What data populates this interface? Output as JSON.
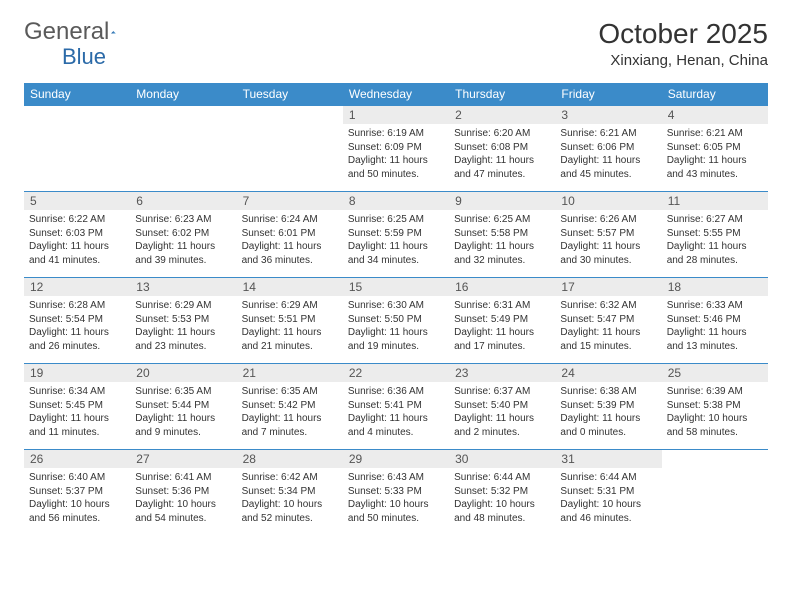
{
  "brand": {
    "name1": "General",
    "name2": "Blue"
  },
  "title": "October 2025",
  "location": "Xinxiang, Henan, China",
  "colors": {
    "header_bg": "#3b8bc9",
    "daynum_bg": "#ececec",
    "border": "#3b8bc9"
  },
  "dayNames": [
    "Sunday",
    "Monday",
    "Tuesday",
    "Wednesday",
    "Thursday",
    "Friday",
    "Saturday"
  ],
  "weeks": [
    [
      null,
      null,
      null,
      {
        "n": "1",
        "sr": "6:19 AM",
        "ss": "6:09 PM",
        "dl": "11 hours and 50 minutes."
      },
      {
        "n": "2",
        "sr": "6:20 AM",
        "ss": "6:08 PM",
        "dl": "11 hours and 47 minutes."
      },
      {
        "n": "3",
        "sr": "6:21 AM",
        "ss": "6:06 PM",
        "dl": "11 hours and 45 minutes."
      },
      {
        "n": "4",
        "sr": "6:21 AM",
        "ss": "6:05 PM",
        "dl": "11 hours and 43 minutes."
      }
    ],
    [
      {
        "n": "5",
        "sr": "6:22 AM",
        "ss": "6:03 PM",
        "dl": "11 hours and 41 minutes."
      },
      {
        "n": "6",
        "sr": "6:23 AM",
        "ss": "6:02 PM",
        "dl": "11 hours and 39 minutes."
      },
      {
        "n": "7",
        "sr": "6:24 AM",
        "ss": "6:01 PM",
        "dl": "11 hours and 36 minutes."
      },
      {
        "n": "8",
        "sr": "6:25 AM",
        "ss": "5:59 PM",
        "dl": "11 hours and 34 minutes."
      },
      {
        "n": "9",
        "sr": "6:25 AM",
        "ss": "5:58 PM",
        "dl": "11 hours and 32 minutes."
      },
      {
        "n": "10",
        "sr": "6:26 AM",
        "ss": "5:57 PM",
        "dl": "11 hours and 30 minutes."
      },
      {
        "n": "11",
        "sr": "6:27 AM",
        "ss": "5:55 PM",
        "dl": "11 hours and 28 minutes."
      }
    ],
    [
      {
        "n": "12",
        "sr": "6:28 AM",
        "ss": "5:54 PM",
        "dl": "11 hours and 26 minutes."
      },
      {
        "n": "13",
        "sr": "6:29 AM",
        "ss": "5:53 PM",
        "dl": "11 hours and 23 minutes."
      },
      {
        "n": "14",
        "sr": "6:29 AM",
        "ss": "5:51 PM",
        "dl": "11 hours and 21 minutes."
      },
      {
        "n": "15",
        "sr": "6:30 AM",
        "ss": "5:50 PM",
        "dl": "11 hours and 19 minutes."
      },
      {
        "n": "16",
        "sr": "6:31 AM",
        "ss": "5:49 PM",
        "dl": "11 hours and 17 minutes."
      },
      {
        "n": "17",
        "sr": "6:32 AM",
        "ss": "5:47 PM",
        "dl": "11 hours and 15 minutes."
      },
      {
        "n": "18",
        "sr": "6:33 AM",
        "ss": "5:46 PM",
        "dl": "11 hours and 13 minutes."
      }
    ],
    [
      {
        "n": "19",
        "sr": "6:34 AM",
        "ss": "5:45 PM",
        "dl": "11 hours and 11 minutes."
      },
      {
        "n": "20",
        "sr": "6:35 AM",
        "ss": "5:44 PM",
        "dl": "11 hours and 9 minutes."
      },
      {
        "n": "21",
        "sr": "6:35 AM",
        "ss": "5:42 PM",
        "dl": "11 hours and 7 minutes."
      },
      {
        "n": "22",
        "sr": "6:36 AM",
        "ss": "5:41 PM",
        "dl": "11 hours and 4 minutes."
      },
      {
        "n": "23",
        "sr": "6:37 AM",
        "ss": "5:40 PM",
        "dl": "11 hours and 2 minutes."
      },
      {
        "n": "24",
        "sr": "6:38 AM",
        "ss": "5:39 PM",
        "dl": "11 hours and 0 minutes."
      },
      {
        "n": "25",
        "sr": "6:39 AM",
        "ss": "5:38 PM",
        "dl": "10 hours and 58 minutes."
      }
    ],
    [
      {
        "n": "26",
        "sr": "6:40 AM",
        "ss": "5:37 PM",
        "dl": "10 hours and 56 minutes."
      },
      {
        "n": "27",
        "sr": "6:41 AM",
        "ss": "5:36 PM",
        "dl": "10 hours and 54 minutes."
      },
      {
        "n": "28",
        "sr": "6:42 AM",
        "ss": "5:34 PM",
        "dl": "10 hours and 52 minutes."
      },
      {
        "n": "29",
        "sr": "6:43 AM",
        "ss": "5:33 PM",
        "dl": "10 hours and 50 minutes."
      },
      {
        "n": "30",
        "sr": "6:44 AM",
        "ss": "5:32 PM",
        "dl": "10 hours and 48 minutes."
      },
      {
        "n": "31",
        "sr": "6:44 AM",
        "ss": "5:31 PM",
        "dl": "10 hours and 46 minutes."
      },
      null
    ]
  ],
  "labels": {
    "sunrise": "Sunrise:",
    "sunset": "Sunset:",
    "daylight": "Daylight:"
  }
}
